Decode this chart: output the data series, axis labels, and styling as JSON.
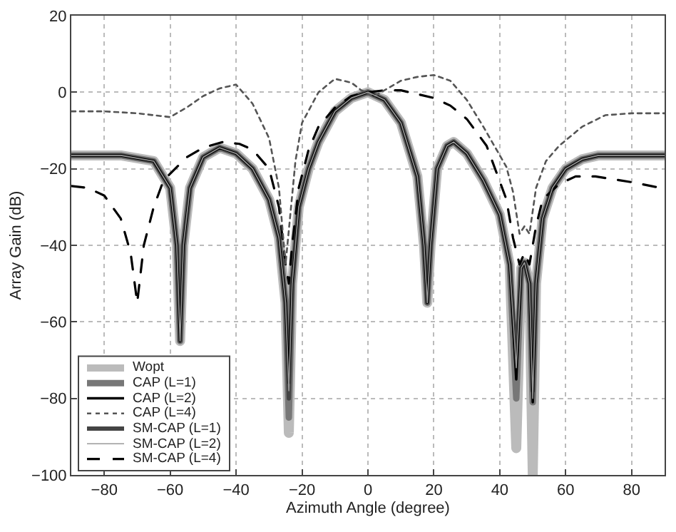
{
  "chart_data": {
    "type": "line",
    "xlabel": "Azimuth Angle (degree)",
    "ylabel": "Array Gain (dB)",
    "x": [
      -90,
      -75,
      -65,
      -60,
      -58,
      -57,
      -56,
      -54,
      -50,
      -45,
      -40,
      -35,
      -30,
      -27,
      -25,
      -24,
      -23,
      -21,
      -18,
      -15,
      -10,
      -5,
      0,
      5,
      10,
      15,
      17,
      18,
      19,
      21,
      24,
      26,
      30,
      35,
      40,
      43,
      45,
      46.5,
      47.5,
      49,
      50,
      51,
      53,
      56,
      60,
      65,
      70,
      90
    ],
    "series": [
      {
        "name": "Wopt",
        "color": "#bbbbbb",
        "values": [
          -16.5,
          -16.5,
          -18,
          -25,
          -40,
          -65,
          -40,
          -25,
          -17,
          -14.5,
          -16,
          -20,
          -28,
          -38,
          -55,
          -89,
          -50,
          -30,
          -20,
          -13,
          -5,
          -1.5,
          0,
          -2,
          -8,
          -22,
          -40,
          -55,
          -40,
          -20,
          -14,
          -13,
          -16,
          -23,
          -32,
          -45,
          -93,
          -46,
          -44.5,
          -50,
          -100,
          -50,
          -33,
          -25,
          -20,
          -17.5,
          -16.5,
          -16.5
        ]
      },
      {
        "name": "CAP (L=1)",
        "color": "#777777",
        "values": [
          -16.5,
          -16.5,
          -18,
          -25,
          -40,
          -65,
          -40,
          -25,
          -17,
          -14.5,
          -16,
          -20,
          -28,
          -38,
          -55,
          -85,
          -50,
          -30,
          -20,
          -13,
          -5,
          -1.5,
          0,
          -2,
          -8,
          -22,
          -40,
          -55,
          -40,
          -20,
          -14,
          -13,
          -16,
          -23,
          -32,
          -45,
          -80,
          -46,
          -44.5,
          -50,
          -81,
          -50,
          -33,
          -25,
          -20,
          -17.5,
          -16.5,
          -16.5
        ]
      },
      {
        "name": "CAP (L=2)",
        "color": "#000000",
        "values": [
          -16.5,
          -16.5,
          -18,
          -25,
          -40,
          -65,
          -40,
          -25,
          -17,
          -14.5,
          -16,
          -20,
          -28,
          -38,
          -55,
          -76,
          -50,
          -30,
          -20,
          -13,
          -5,
          -1.5,
          0,
          -2,
          -8,
          -22,
          -40,
          -55,
          -40,
          -20,
          -14,
          -13,
          -16,
          -23,
          -32,
          -45,
          -75,
          -46,
          -44.5,
          -50,
          -81,
          -50,
          -33,
          -25,
          -20,
          -17.5,
          -16.5,
          -16.5
        ]
      },
      {
        "name": "CAP (L=4)",
        "color": "#555555",
        "line_style": "dotted",
        "x": [
          -90,
          -80,
          -70,
          -60,
          -55,
          -50,
          -45,
          -40,
          -35,
          -30,
          -27,
          -25,
          -22,
          -20,
          -15,
          -10,
          -5,
          -2,
          2,
          5,
          10,
          15,
          20,
          25,
          30,
          35,
          42,
          44,
          46,
          47.5,
          49,
          51,
          54,
          58,
          65,
          72,
          80,
          90
        ],
        "values": [
          -5,
          -5,
          -5.5,
          -6.5,
          -4,
          -1,
          1,
          2,
          -3,
          -12,
          -25,
          -45,
          -18,
          -8,
          0,
          3.5,
          2.5,
          0.5,
          -1,
          0.5,
          3,
          4,
          4.5,
          3,
          -2,
          -9,
          -19.5,
          -26,
          -37,
          -35,
          -37,
          -25,
          -18,
          -14,
          -9,
          -6,
          -5.5,
          -5.5
        ]
      },
      {
        "name": "SM-CAP (L=1)",
        "color": "#444444",
        "values": [
          -16.5,
          -16.5,
          -18,
          -25,
          -40,
          -65,
          -40,
          -25,
          -17,
          -14.5,
          -16,
          -20,
          -28,
          -38,
          -55,
          -80,
          -50,
          -30,
          -20,
          -13,
          -5,
          -1.5,
          0,
          -2,
          -8,
          -22,
          -40,
          -55,
          -40,
          -20,
          -14,
          -13,
          -16,
          -23,
          -32,
          -45,
          -70,
          -46,
          -44.5,
          -50,
          -78,
          -50,
          -33,
          -25,
          -20,
          -17.5,
          -16.5,
          -16.5
        ]
      },
      {
        "name": "SM-CAP (L=2)",
        "color": "#999999",
        "values": [
          -16.5,
          -16.5,
          -18,
          -25,
          -40,
          -65,
          -40,
          -25,
          -17,
          -14.5,
          -16,
          -20,
          -28,
          -38,
          -55,
          -78,
          -50,
          -30,
          -20,
          -13,
          -5,
          -1.5,
          0,
          -2,
          -8,
          -22,
          -40,
          -55,
          -40,
          -20,
          -14,
          -13,
          -16,
          -23,
          -32,
          -45,
          -72,
          -46,
          -44.5,
          -50,
          -80,
          -50,
          -33,
          -25,
          -20,
          -17.5,
          -16.5,
          -16.5
        ]
      },
      {
        "name": "SM-CAP (L=4)",
        "color": "#000000",
        "line_style": "dashed",
        "x": [
          -90,
          -85,
          -80,
          -75,
          -72,
          -70,
          -68,
          -65,
          -62,
          -55,
          -50,
          -44,
          -39,
          -35,
          -30,
          -27,
          -25,
          -24,
          -23,
          -21,
          -18,
          -15,
          -10,
          -5,
          0,
          5,
          10,
          15,
          20,
          25,
          30,
          36,
          42,
          44,
          46,
          47.5,
          49,
          51,
          53,
          58,
          63,
          69,
          80,
          87,
          90
        ],
        "values": [
          -24.5,
          -25,
          -27,
          -33,
          -42,
          -55,
          -40,
          -30,
          -23,
          -17,
          -14.5,
          -13,
          -13.5,
          -15,
          -20,
          -30,
          -45,
          -50,
          -40,
          -25,
          -15,
          -9,
          -4,
          -1,
          0,
          0.5,
          0.5,
          -0.5,
          -1.5,
          -3.5,
          -7,
          -14,
          -28,
          -38,
          -45,
          -42,
          -45,
          -35,
          -28,
          -24,
          -22,
          -22,
          -23.5,
          -24.7,
          -25
        ]
      }
    ],
    "xlim": [
      -90,
      90
    ],
    "ylim": [
      -100,
      20
    ],
    "xticks": [
      -80,
      -60,
      -40,
      -20,
      0,
      20,
      40,
      60,
      80
    ],
    "yticks": [
      -100,
      -80,
      -60,
      -40,
      -20,
      0,
      20
    ],
    "grid": true,
    "legend": "bottom left",
    "marker": "none",
    "line_style": "solid"
  }
}
